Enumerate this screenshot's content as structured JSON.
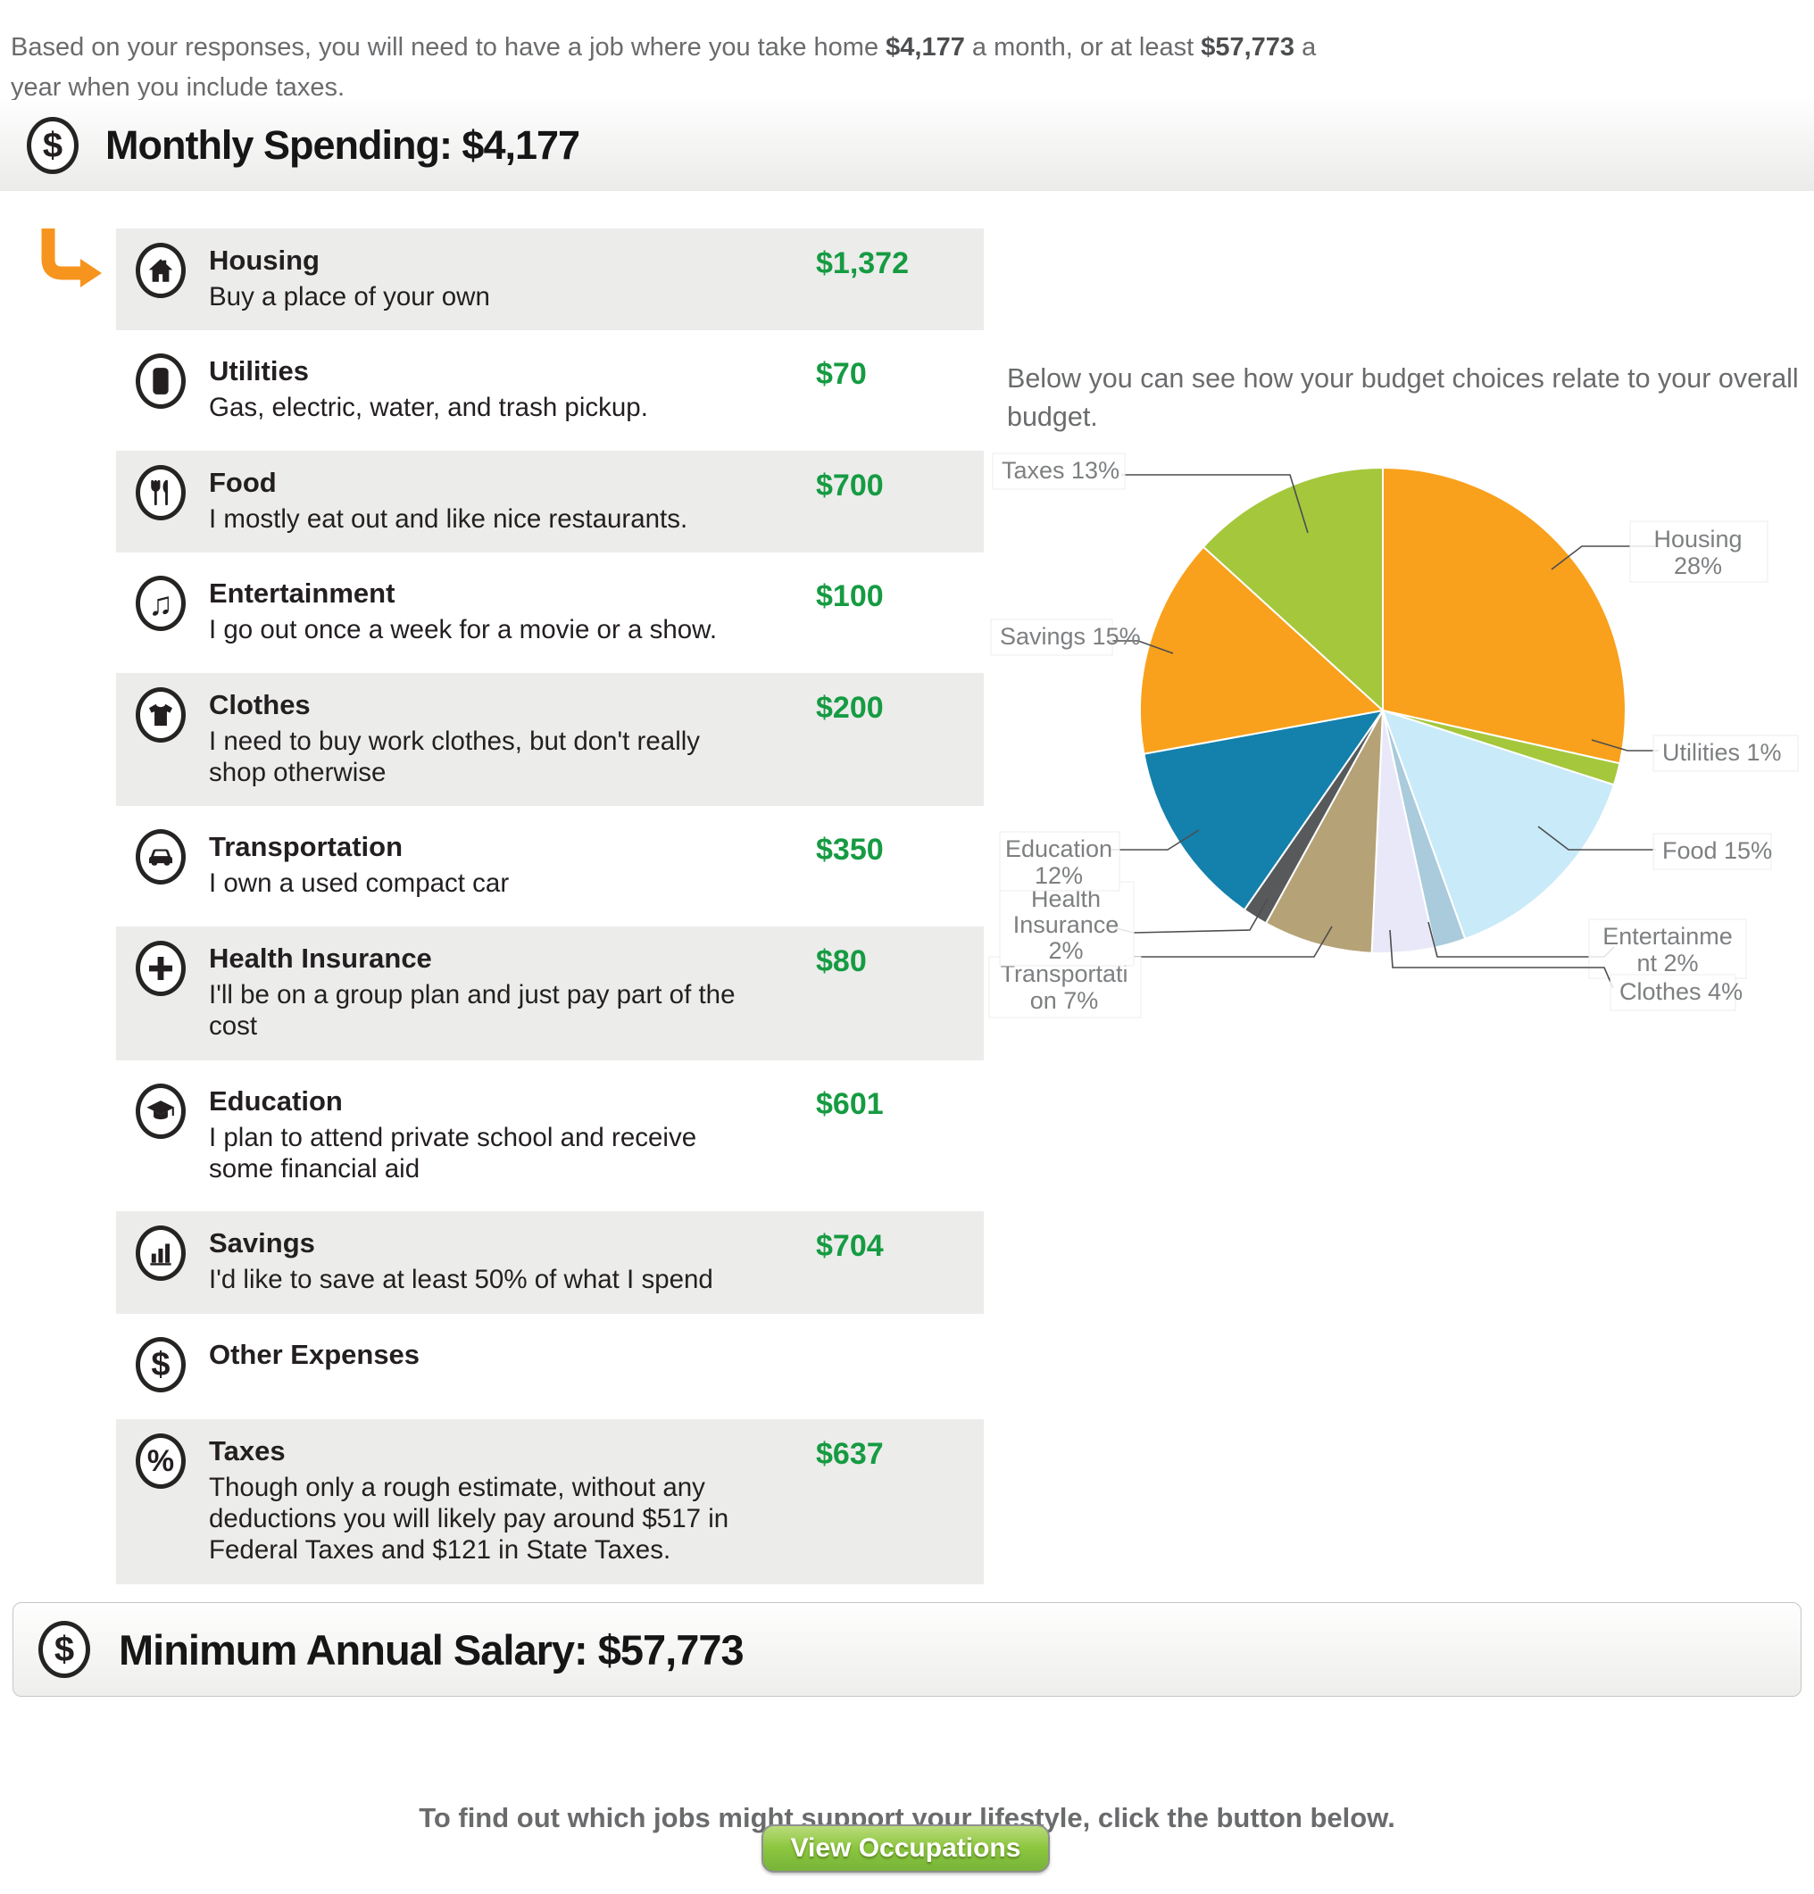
{
  "intro": {
    "prefix": "Based on your responses, you will need to have a job where you take home ",
    "monthly_amount": "$4,177",
    "middle": " a month, or at least ",
    "annual_amount": "$57,773",
    "suffix": " a year when you include taxes."
  },
  "monthly_header": {
    "label": "Monthly Spending: $4,177"
  },
  "budget_note": "Below you can see how your budget choices relate to your overall budget.",
  "categories": [
    {
      "name": "Housing",
      "desc": "Buy a place of your own",
      "amount": "$1,372",
      "icon": "home-icon"
    },
    {
      "name": "Utilities",
      "desc": "Gas, electric, water, and trash pickup.",
      "amount": "$70",
      "icon": "mobile-phone-icon"
    },
    {
      "name": "Food",
      "desc": "I mostly eat out and like nice restaurants.",
      "amount": "$700",
      "icon": "utensils-icon"
    },
    {
      "name": "Entertainment",
      "desc": "I go out once a week for a movie or a show.",
      "amount": "$100",
      "icon": "music-note-icon"
    },
    {
      "name": "Clothes",
      "desc": "I need to buy work clothes, but don't really shop otherwise",
      "amount": "$200",
      "icon": "tshirt-icon"
    },
    {
      "name": "Transportation",
      "desc": "I own a used compact car",
      "amount": "$350",
      "icon": "car-icon"
    },
    {
      "name": "Health Insurance",
      "desc": "I'll be on a group plan and just pay part of the cost",
      "amount": "$80",
      "icon": "medical-cross-icon"
    },
    {
      "name": "Education",
      "desc": "I plan to attend private school and receive some financial aid",
      "amount": "$601",
      "icon": "graduation-cap-icon"
    },
    {
      "name": "Savings",
      "desc": "I'd like to save at least 50% of what I spend",
      "amount": "$704",
      "icon": "bar-chart-icon"
    },
    {
      "name": "Other Expenses",
      "desc": "",
      "amount": "",
      "icon": "dollar-icon"
    },
    {
      "name": "Taxes",
      "desc": "Though only a rough estimate, without any deductions you will likely pay around $517 in Federal Taxes and $121 in State Taxes.",
      "amount": "$637",
      "icon": "percent-icon"
    }
  ],
  "chart_data": {
    "type": "pie",
    "title": "",
    "legend_position": "callout-labels",
    "slices": [
      {
        "label": "Housing",
        "pct": 28,
        "value": 1372,
        "color": "#F9A11C"
      },
      {
        "label": "Utilities",
        "pct": 1,
        "value": 70,
        "color": "#A4C73C"
      },
      {
        "label": "Food",
        "pct": 15,
        "value": 700,
        "color": "#C9EAF8"
      },
      {
        "label": "Entertainment",
        "pct": 2,
        "value": 100,
        "color": "#A9CBDB"
      },
      {
        "label": "Clothes",
        "pct": 4,
        "value": 200,
        "color": "#E9E8F8"
      },
      {
        "label": "Transportation",
        "pct": 7,
        "value": 350,
        "color": "#B5A276"
      },
      {
        "label": "Health Insurance",
        "pct": 2,
        "value": 80,
        "color": "#58595B"
      },
      {
        "label": "Education",
        "pct": 12,
        "value": 601,
        "color": "#1480AC"
      },
      {
        "label": "Savings",
        "pct": 15,
        "value": 704,
        "color": "#F9A11C"
      },
      {
        "label": "Taxes",
        "pct": 13,
        "value": 637,
        "color": "#A4C73C"
      }
    ]
  },
  "salary_bar": {
    "label": "Minimum Annual Salary: $57,773"
  },
  "footer": {
    "cta_text": "To find out which jobs might support your lifestyle, click the button below.",
    "button_label": "View Occupations"
  },
  "colors": {
    "amount_green": "#169B42",
    "accent_orange": "#F7941E"
  }
}
